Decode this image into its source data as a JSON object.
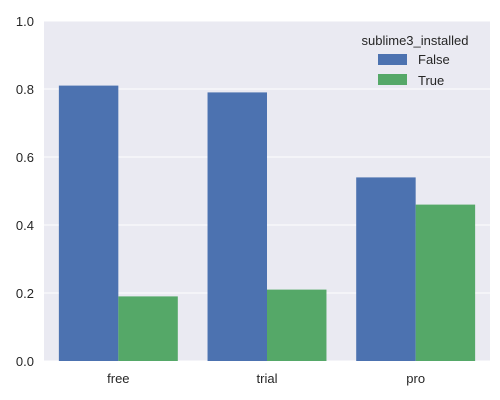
{
  "chart_data": {
    "type": "bar",
    "categories": [
      "free",
      "trial",
      "pro"
    ],
    "series": [
      {
        "name": "False",
        "values": [
          0.81,
          0.79,
          0.54
        ],
        "color": "#4c72b0"
      },
      {
        "name": "True",
        "values": [
          0.19,
          0.21,
          0.46
        ],
        "color": "#55a868"
      }
    ],
    "yticks": [
      "0.0",
      "0.2",
      "0.4",
      "0.6",
      "0.8",
      "1.0"
    ],
    "ylim": [
      0,
      1.0
    ],
    "grid": true,
    "legend": {
      "title": "sublime3_installed",
      "placement": "top-right"
    },
    "colors": {
      "background": "#eaeaf2",
      "grid": "#ffffff"
    }
  }
}
